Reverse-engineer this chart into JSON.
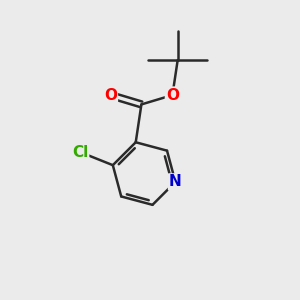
{
  "background_color": "#ebebeb",
  "bond_color": "#2a2a2a",
  "bond_width": 1.8,
  "atom_colors": {
    "O": "#ff0000",
    "N": "#0000cc",
    "Cl": "#33aa00"
  },
  "figsize": [
    3.0,
    3.0
  ],
  "dpi": 100
}
